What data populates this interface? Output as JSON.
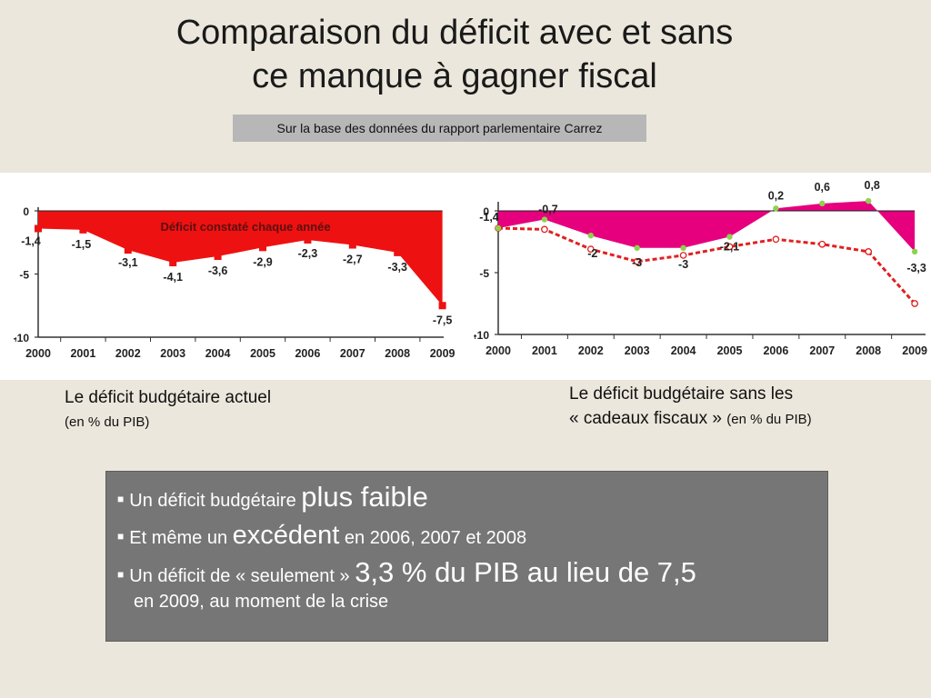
{
  "title_line1": "Comparaison du déficit avec et sans",
  "title_line2": "ce manque à gagner fiscal",
  "source": "Sur la base des données du rapport parlementaire Carrez",
  "caption_left": {
    "line1": "Le déficit budgétaire actuel",
    "line2": "(en % du PIB)"
  },
  "caption_right": {
    "line1": "Le déficit budgétaire sans les",
    "line2": "« cadeaux fiscaux »",
    "line2_small": "(en % du PIB)"
  },
  "bullets": {
    "b1_a": "Un déficit budgétaire",
    "b1_b": "plus faible",
    "b2_a": "Et même un",
    "b2_b": "excédent",
    "b2_c": "en 2006, 2007 et 2008",
    "b3_a": "Un déficit de « seulement »",
    "b3_b": "3,3 % du PIB au lieu de 7,5",
    "b3_c": "en 2009, au moment de la crise"
  },
  "chart_data": [
    {
      "type": "area",
      "title": "Déficit constaté chaque année",
      "color": "#ee1111",
      "categories": [
        "2000",
        "2001",
        "2002",
        "2003",
        "2004",
        "2005",
        "2006",
        "2007",
        "2008",
        "2009"
      ],
      "values": [
        -1.4,
        -1.5,
        -3.1,
        -4.1,
        -3.6,
        -2.9,
        -2.3,
        -2.7,
        -3.3,
        -7.5
      ],
      "labels": [
        "-1,4",
        "-1,5",
        "-3,1",
        "-4,1",
        "-3,6",
        "-2,9",
        "-2,3",
        "-2,7",
        "-3,3",
        "-7,5"
      ],
      "yticks": [
        "0",
        "-5",
        "-10"
      ],
      "ylim": [
        -10,
        0
      ]
    },
    {
      "type": "area",
      "title": "",
      "color": "#e6007e",
      "categories": [
        "2000",
        "2001",
        "2002",
        "2003",
        "2004",
        "2005",
        "2006",
        "2007",
        "2008",
        "2009"
      ],
      "values": [
        -1.4,
        -0.7,
        -2,
        -3,
        -3,
        -2.1,
        0.2,
        0.6,
        0.8,
        -3.3
      ],
      "labels": [
        "-1,4",
        "-0,7",
        "-2",
        "-3",
        "-3",
        "-2,1",
        "0,2",
        "0,6",
        "0,8",
        "-3,3"
      ],
      "reference_values": [
        -1.4,
        -1.5,
        -3.1,
        -4.1,
        -3.6,
        -2.9,
        -2.3,
        -2.7,
        -3.3,
        -7.5
      ],
      "reference_color": "#e02020",
      "yticks": [
        "0",
        "-5",
        "-10"
      ],
      "ylim": [
        -10,
        1
      ]
    }
  ]
}
